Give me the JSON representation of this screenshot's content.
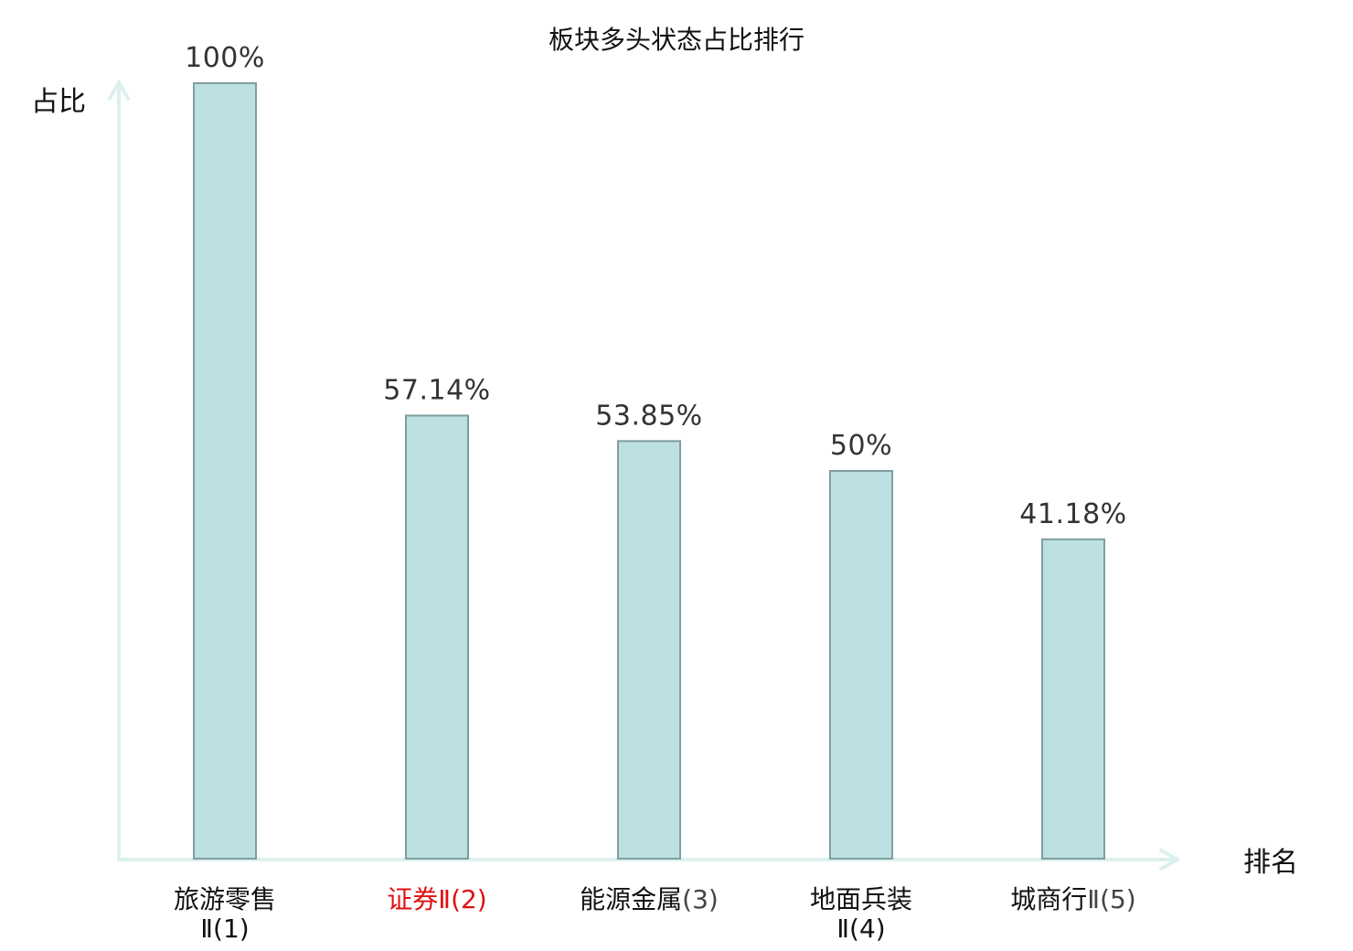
{
  "chart_data": {
    "type": "bar",
    "title": "板块多头状态占比排行",
    "ylabel": "占比",
    "xlabel": "排名",
    "ylim": [
      0,
      100
    ],
    "grid": false,
    "legend": "none",
    "categories": [
      {
        "lines": [
          [
            "旅游零售",
            ""
          ],
          [
            "Ⅱ(1)",
            ""
          ]
        ],
        "highlight": false
      },
      {
        "lines": [
          [
            "证券",
            "Ⅱ(2)"
          ]
        ],
        "highlight": true
      },
      {
        "lines": [
          [
            "能源金属",
            "(3)"
          ]
        ],
        "highlight": false
      },
      {
        "lines": [
          [
            "地面兵装",
            ""
          ],
          [
            "Ⅱ(4)",
            ""
          ]
        ],
        "highlight": false
      },
      {
        "lines": [
          [
            "城商行",
            "Ⅱ(5)"
          ]
        ],
        "highlight": false
      }
    ],
    "values": [
      100,
      57.14,
      53.85,
      50,
      41.18
    ],
    "value_labels": [
      "100%",
      "57.14%",
      "53.85%",
      "50%",
      "41.18%"
    ],
    "colors": {
      "bar_fill": "#bde0e2",
      "bar_stroke": "#7f9e9f",
      "axis": "#dcf1ee",
      "highlight_text": "#e01010"
    }
  }
}
